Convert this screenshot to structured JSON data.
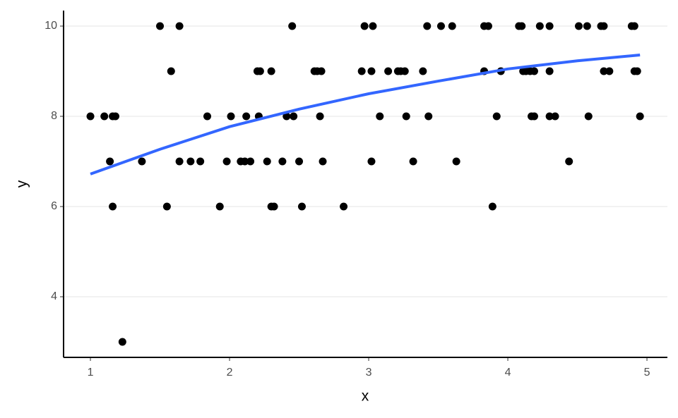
{
  "chart_data": {
    "type": "scatter",
    "xlabel": "x",
    "ylabel": "y",
    "xlim": [
      0.807,
      5.147
    ],
    "ylim": [
      2.656,
      10.344
    ],
    "xticks": [
      1,
      2,
      3,
      4,
      5
    ],
    "yticks": [
      4,
      6,
      8,
      10
    ],
    "grid": true,
    "series": [
      {
        "type": "scatter",
        "color": "#000000",
        "x": [
          1.0,
          1.1,
          1.16,
          1.18,
          1.84,
          2.01,
          2.12,
          2.21,
          2.41,
          2.46,
          2.65,
          3.08,
          3.27,
          3.43,
          3.92,
          4.17,
          4.19,
          4.3,
          4.34,
          4.58,
          4.95,
          1.5,
          1.64,
          2.45,
          2.97,
          3.03,
          3.42,
          3.52,
          3.6,
          3.83,
          3.86,
          4.08,
          4.1,
          4.23,
          4.3,
          4.51,
          4.57,
          4.67,
          4.69,
          4.89,
          4.91,
          1.58,
          2.2,
          2.22,
          2.3,
          2.61,
          2.63,
          2.66,
          2.95,
          3.02,
          3.14,
          3.21,
          3.23,
          3.26,
          3.39,
          3.83,
          3.95,
          4.11,
          4.13,
          4.16,
          4.19,
          4.3,
          4.69,
          4.73,
          4.91,
          4.93,
          1.14,
          1.37,
          1.64,
          1.72,
          1.79,
          1.98,
          2.08,
          2.11,
          2.15,
          2.27,
          2.38,
          2.5,
          2.67,
          3.02,
          3.32,
          3.63,
          4.44,
          1.16,
          1.55,
          1.93,
          2.3,
          2.32,
          2.52,
          2.82,
          3.89,
          1.23
        ],
        "values": [
          8,
          8,
          8,
          8,
          8,
          8,
          8,
          8,
          8,
          8,
          8,
          8,
          8,
          8,
          8,
          8,
          8,
          8,
          8,
          8,
          8,
          10,
          10,
          10,
          10,
          10,
          10,
          10,
          10,
          10,
          10,
          10,
          10,
          10,
          10,
          10,
          10,
          10,
          10,
          10,
          10,
          9,
          9,
          9,
          9,
          9,
          9,
          9,
          9,
          9,
          9,
          9,
          9,
          9,
          9,
          9,
          9,
          9,
          9,
          9,
          9,
          9,
          9,
          9,
          9,
          9,
          7,
          7,
          7,
          7,
          7,
          7,
          7,
          7,
          7,
          7,
          7,
          7,
          7,
          7,
          7,
          7,
          7,
          6,
          6,
          6,
          6,
          6,
          6,
          6,
          6,
          3
        ]
      },
      {
        "type": "line",
        "color": "#3366ff",
        "x": [
          1,
          1.5,
          2,
          2.5,
          3,
          3.5,
          4,
          4.5,
          4.95
        ],
        "values": [
          6.72,
          7.27,
          7.77,
          8.16,
          8.5,
          8.78,
          9.05,
          9.23,
          9.36
        ]
      }
    ]
  }
}
